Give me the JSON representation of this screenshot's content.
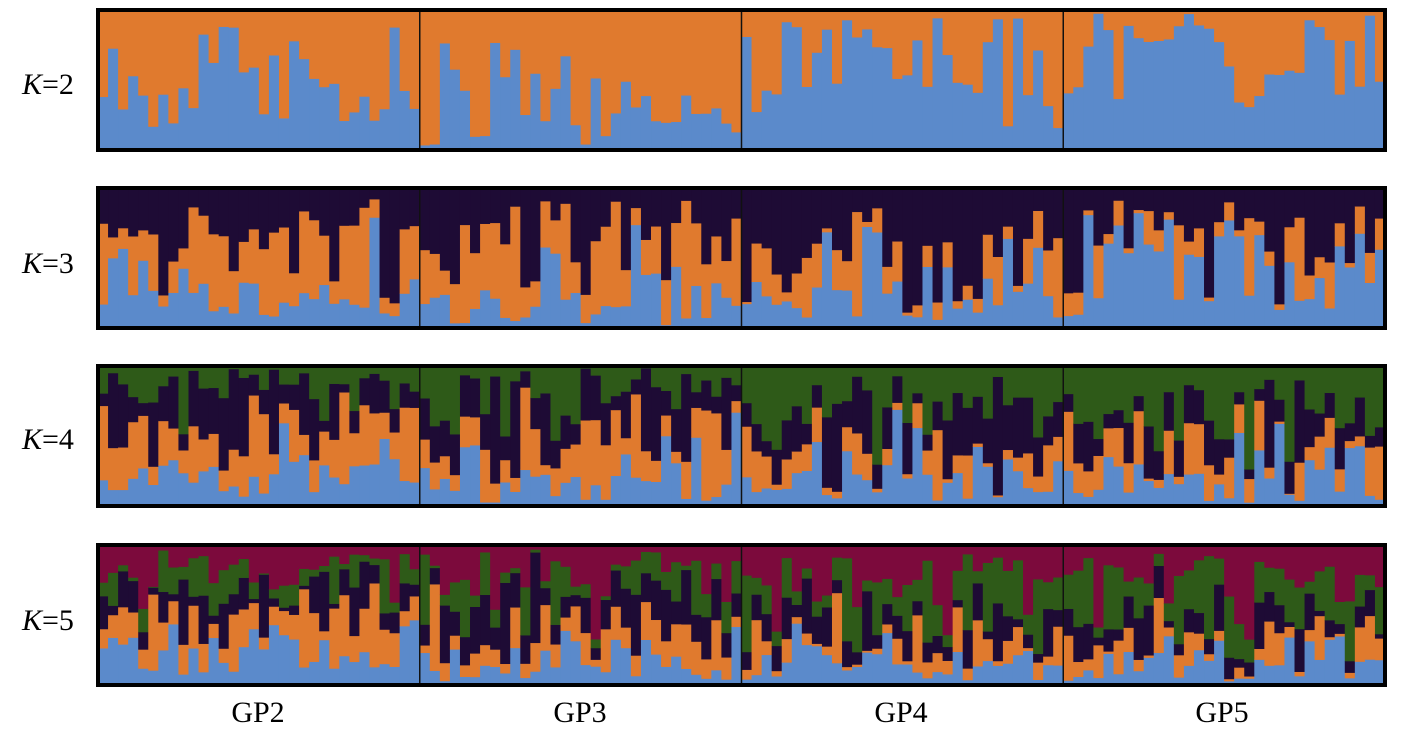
{
  "chart_data": {
    "type": "bar",
    "subtype": "stacked-ancestry-proportions",
    "groups": [
      "GP2",
      "GP3",
      "GP4",
      "GP5"
    ],
    "individuals_per_group": [
      32,
      32,
      32,
      32
    ],
    "colors": {
      "cluster1": "#5B8ACB",
      "cluster2": "#E07A2E",
      "cluster3": "#1E0B35",
      "cluster4": "#2E5A18",
      "cluster5": "#7C0A3C"
    },
    "panels": [
      {
        "label_prefix": "K",
        "label_suffix": "=2",
        "k": 2,
        "order": [
          "cluster1",
          "cluster2"
        ],
        "group_profiles": {
          "GP2": [
            0.5,
            0.5
          ],
          "GP3": [
            0.15,
            0.85
          ],
          "GP4": [
            0.72,
            0.28
          ],
          "GP5": [
            0.88,
            0.12
          ]
        }
      },
      {
        "label_prefix": "K",
        "label_suffix": "=3",
        "k": 3,
        "order": [
          "cluster1",
          "cluster2",
          "cluster3"
        ],
        "group_profiles": {
          "GP2": [
            0.35,
            0.35,
            0.3
          ],
          "GP3": [
            0.12,
            0.45,
            0.43
          ],
          "GP4": [
            0.3,
            0.1,
            0.6
          ],
          "GP5": [
            0.45,
            0.08,
            0.47
          ]
        }
      },
      {
        "label_prefix": "K",
        "label_suffix": "=4",
        "k": 4,
        "order": [
          "cluster1",
          "cluster2",
          "cluster3",
          "cluster4"
        ],
        "group_profiles": {
          "GP2": [
            0.34,
            0.34,
            0.27,
            0.05
          ],
          "GP3": [
            0.1,
            0.35,
            0.47,
            0.08
          ],
          "GP4": [
            0.2,
            0.06,
            0.42,
            0.32
          ],
          "GP5": [
            0.1,
            0.05,
            0.3,
            0.55
          ]
        }
      },
      {
        "label_prefix": "K",
        "label_suffix": "=5",
        "k": 5,
        "order": [
          "cluster1",
          "cluster2",
          "cluster3",
          "cluster4",
          "cluster5"
        ],
        "group_profiles": {
          "GP2": [
            0.32,
            0.33,
            0.1,
            0.03,
            0.22
          ],
          "GP3": [
            0.1,
            0.25,
            0.4,
            0.05,
            0.2
          ],
          "GP4": [
            0.12,
            0.05,
            0.25,
            0.23,
            0.35
          ],
          "GP5": [
            0.1,
            0.05,
            0.12,
            0.35,
            0.38
          ]
        }
      }
    ]
  }
}
